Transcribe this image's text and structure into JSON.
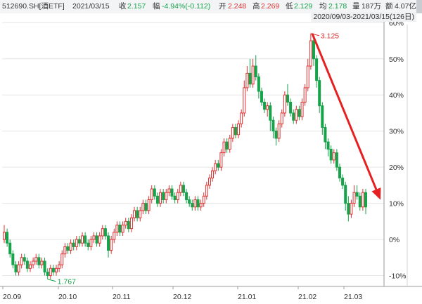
{
  "header": {
    "symbol": "512690.SH[酒ETF]",
    "date": "2021/03/15",
    "close_label": "收",
    "close_value": "2.157",
    "change_label": "幅",
    "change_value": "-4.94%(-0.112)",
    "open_label": "开",
    "open_value": "2.248",
    "high_label": "高",
    "high_value": "2.269",
    "low_label": "低",
    "low_value": "2.129",
    "avg_label": "均",
    "avg_value": "2.178",
    "volume_label": "量",
    "volume_value": "187万",
    "amount_label": "额",
    "amount_value": "4.07亿",
    "range_label": "2020/09/03-2021/03/15(126日)"
  },
  "chart_data": {
    "type": "candlestick",
    "y_axis": {
      "unit": "percent",
      "min": -13,
      "max": 62,
      "ticks": [
        60,
        50,
        40,
        30,
        20,
        10,
        0,
        -10
      ],
      "tick_labels": [
        "60%",
        "50%",
        "40%",
        "30%",
        "20%",
        "10%",
        "0%",
        "-10%"
      ],
      "side": "right",
      "grid": true
    },
    "x_axis": {
      "tick_labels": [
        "20.09",
        "20.10",
        "20.11",
        "20.12",
        "21.01",
        "21.02",
        "21.03"
      ]
    },
    "annotations": [
      {
        "type": "high",
        "label": "3.125",
        "value_pct": 57
      },
      {
        "type": "low",
        "label": "1.767",
        "value_pct": -11
      }
    ],
    "trend_arrow": {
      "color": "#e62020",
      "from_value_pct": 57,
      "to_value_pct": 10,
      "direction": "down-right"
    },
    "candles": [
      [
        0.0,
        2.0,
        4.0,
        -1.0
      ],
      [
        2.0,
        -1.0,
        3.0,
        -2.0
      ],
      [
        -1.0,
        -4.0,
        0.0,
        -5.0
      ],
      [
        -4.0,
        -7.0,
        -3.0,
        -8.0
      ],
      [
        -7.0,
        -9.0,
        -6.0,
        -10.0
      ],
      [
        -9.0,
        -7.0,
        -6.0,
        -10.0
      ],
      [
        -7.0,
        -5.0,
        -4.0,
        -8.0
      ],
      [
        -5.0,
        -6.0,
        -4.0,
        -7.0
      ],
      [
        -6.0,
        -8.0,
        -5.0,
        -9.0
      ],
      [
        -8.0,
        -7.0,
        -6.0,
        -9.0
      ],
      [
        -7.0,
        -6.0,
        -5.0,
        -8.0
      ],
      [
        -6.0,
        -5.0,
        -4.0,
        -7.0
      ],
      [
        -5.0,
        -7.0,
        -4.0,
        -8.0
      ],
      [
        -7.0,
        -6.0,
        -5.0,
        -8.0
      ],
      [
        -6.0,
        -9.0,
        -5.0,
        -10.0
      ],
      [
        -9.0,
        -10.0,
        -8.0,
        -11.0
      ],
      [
        -10.0,
        -8.0,
        -7.0,
        -11.0
      ],
      [
        -8.0,
        -9.0,
        -7.0,
        -10.0
      ],
      [
        -9.0,
        -8.0,
        -7.0,
        -10.0
      ],
      [
        -8.0,
        -7.0,
        -6.0,
        -9.0
      ],
      [
        -7.0,
        -4.0,
        -3.0,
        -8.0
      ],
      [
        -4.0,
        -2.0,
        -1.0,
        -5.0
      ],
      [
        -2.0,
        -3.0,
        -1.0,
        -4.0
      ],
      [
        -3.0,
        -1.0,
        0.0,
        -4.0
      ],
      [
        -1.0,
        -2.0,
        0.0,
        -3.0
      ],
      [
        -2.0,
        0.0,
        1.0,
        -3.0
      ],
      [
        0.0,
        -1.0,
        1.0,
        -2.0
      ],
      [
        -1.0,
        1.0,
        2.0,
        -2.0
      ],
      [
        1.0,
        -1.0,
        2.0,
        -2.0
      ],
      [
        -1.0,
        -2.0,
        0.0,
        -3.0
      ],
      [
        -2.0,
        0.0,
        1.0,
        -3.0
      ],
      [
        0.0,
        1.0,
        2.0,
        -1.0
      ],
      [
        1.0,
        -1.0,
        2.0,
        -2.0
      ],
      [
        -1.0,
        1.0,
        2.0,
        -2.0
      ],
      [
        1.0,
        3.0,
        4.0,
        0.0
      ],
      [
        3.0,
        1.0,
        4.0,
        0.0
      ],
      [
        1.0,
        -3.0,
        2.0,
        -5.0
      ],
      [
        -3.0,
        0.0,
        1.0,
        -4.0
      ],
      [
        0.0,
        2.0,
        3.0,
        -1.0
      ],
      [
        2.0,
        4.0,
        5.0,
        1.0
      ],
      [
        4.0,
        2.0,
        5.0,
        1.0
      ],
      [
        2.0,
        4.0,
        5.0,
        1.0
      ],
      [
        4.0,
        5.0,
        6.0,
        3.0
      ],
      [
        5.0,
        3.0,
        6.0,
        2.0
      ],
      [
        3.0,
        6.0,
        7.0,
        2.0
      ],
      [
        6.0,
        8.0,
        9.0,
        5.0
      ],
      [
        8.0,
        6.0,
        9.0,
        5.0
      ],
      [
        6.0,
        8.0,
        9.0,
        5.0
      ],
      [
        8.0,
        10.0,
        11.0,
        7.0
      ],
      [
        10.0,
        8.0,
        11.0,
        7.0
      ],
      [
        8.0,
        11.0,
        12.0,
        7.0
      ],
      [
        11.0,
        14.0,
        15.0,
        10.0
      ],
      [
        14.0,
        12.0,
        15.0,
        11.0
      ],
      [
        12.0,
        10.0,
        13.0,
        9.0
      ],
      [
        10.0,
        13.0,
        14.0,
        9.0
      ],
      [
        13.0,
        11.0,
        14.0,
        10.0
      ],
      [
        11.0,
        13.0,
        14.0,
        10.0
      ],
      [
        13.0,
        14.0,
        15.0,
        12.0
      ],
      [
        14.0,
        12.0,
        15.0,
        11.0
      ],
      [
        12.0,
        11.0,
        13.0,
        10.0
      ],
      [
        11.0,
        13.0,
        14.0,
        10.0
      ],
      [
        13.0,
        15.0,
        16.0,
        12.0
      ],
      [
        15.0,
        13.0,
        16.0,
        12.0
      ],
      [
        13.0,
        11.0,
        14.0,
        10.0
      ],
      [
        11.0,
        10.0,
        12.0,
        9.0
      ],
      [
        10.0,
        9.0,
        11.0,
        8.0
      ],
      [
        9.0,
        11.0,
        12.0,
        8.0
      ],
      [
        11.0,
        9.0,
        12.0,
        8.0
      ],
      [
        9.0,
        10.0,
        11.0,
        8.0
      ],
      [
        10.0,
        12.0,
        13.0,
        9.0
      ],
      [
        12.0,
        15.0,
        16.0,
        11.0
      ],
      [
        15.0,
        17.0,
        18.0,
        14.0
      ],
      [
        17.0,
        19.0,
        20.0,
        16.0
      ],
      [
        19.0,
        21.0,
        22.0,
        18.0
      ],
      [
        21.0,
        20.0,
        22.0,
        19.0
      ],
      [
        20.0,
        24.0,
        25.0,
        19.0
      ],
      [
        24.0,
        27.0,
        28.0,
        23.0
      ],
      [
        27.0,
        25.0,
        28.0,
        24.0
      ],
      [
        25.0,
        28.0,
        29.0,
        24.0
      ],
      [
        28.0,
        31.0,
        32.0,
        27.0
      ],
      [
        31.0,
        29.0,
        32.0,
        28.0
      ],
      [
        29.0,
        32.0,
        33.0,
        28.0
      ],
      [
        32.0,
        35.0,
        36.0,
        31.0
      ],
      [
        35.0,
        42.0,
        44.0,
        34.0
      ],
      [
        42.0,
        46.0,
        48.0,
        41.0
      ],
      [
        46.0,
        43.0,
        50.0,
        42.0
      ],
      [
        43.0,
        48.0,
        50.0,
        42.0
      ],
      [
        48.0,
        45.0,
        51.0,
        44.0
      ],
      [
        45.0,
        41.0,
        46.0,
        39.0
      ],
      [
        41.0,
        38.0,
        42.0,
        37.0
      ],
      [
        38.0,
        36.0,
        39.0,
        35.0
      ],
      [
        36.0,
        37.0,
        38.0,
        34.0
      ],
      [
        37.0,
        33.0,
        38.0,
        30.0
      ],
      [
        33.0,
        30.0,
        34.0,
        28.0
      ],
      [
        30.0,
        28.0,
        31.0,
        26.0
      ],
      [
        28.0,
        32.0,
        33.0,
        27.0
      ],
      [
        32.0,
        35.0,
        36.0,
        31.0
      ],
      [
        35.0,
        40.0,
        41.0,
        34.0
      ],
      [
        40.0,
        38.0,
        43.0,
        37.0
      ],
      [
        38.0,
        35.0,
        39.0,
        34.0
      ],
      [
        35.0,
        33.0,
        36.0,
        32.0
      ],
      [
        33.0,
        36.0,
        37.0,
        32.0
      ],
      [
        36.0,
        34.0,
        37.0,
        33.0
      ],
      [
        34.0,
        38.0,
        39.0,
        33.0
      ],
      [
        38.0,
        42.0,
        43.0,
        37.0
      ],
      [
        42.0,
        48.0,
        50.0,
        41.0
      ],
      [
        48.0,
        55.0,
        57.0,
        47.0
      ],
      [
        55.0,
        50.0,
        56.0,
        48.0
      ],
      [
        50.0,
        44.0,
        51.0,
        42.0
      ],
      [
        44.0,
        37.0,
        45.0,
        35.0
      ],
      [
        37.0,
        31.0,
        38.0,
        29.0
      ],
      [
        31.0,
        27.0,
        32.0,
        25.0
      ],
      [
        27.0,
        25.0,
        28.0,
        23.0
      ],
      [
        25.0,
        22.0,
        26.0,
        21.0
      ],
      [
        22.0,
        24.0,
        25.0,
        21.0
      ],
      [
        24.0,
        20.0,
        25.0,
        19.0
      ],
      [
        20.0,
        17.0,
        21.0,
        16.0
      ],
      [
        17.0,
        15.0,
        18.0,
        14.0
      ],
      [
        15.0,
        10.0,
        16.0,
        8.0
      ],
      [
        10.0,
        7.0,
        12.0,
        5.0
      ],
      [
        7.0,
        10.0,
        11.0,
        6.0
      ],
      [
        10.0,
        13.0,
        15.0,
        9.0
      ],
      [
        13.0,
        12.0,
        15.0,
        11.0
      ],
      [
        12.0,
        9.0,
        13.0,
        8.0
      ],
      [
        9.0,
        13.0,
        14.0,
        8.0
      ],
      [
        13.0,
        9.0,
        14.0,
        7.0
      ]
    ],
    "colors": {
      "up": "#e03030",
      "down": "#16a34a",
      "grid": "#e6e6e6",
      "axis_text": "#333333"
    }
  }
}
